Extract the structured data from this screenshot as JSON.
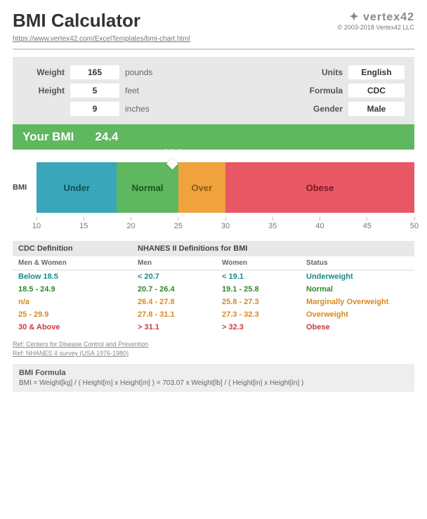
{
  "header": {
    "title": "BMI Calculator",
    "url": "https://www.vertex42.com/ExcelTemplates/bmi-chart.html",
    "logo": "✦ vertex42",
    "copyright": "© 2003-2018 Vertex42 LLC"
  },
  "params": {
    "weight_label": "Weight",
    "weight_value": "165",
    "weight_units": "pounds",
    "height_label": "Height",
    "height_ft": "5",
    "height_ft_units": "feet",
    "height_in": "9",
    "height_in_units": "inches",
    "units_label": "Units",
    "units_value": "English",
    "formula_label": "Formula",
    "formula_value": "CDC",
    "gender_label": "Gender",
    "gender_value": "Male"
  },
  "banner": {
    "label": "Your BMI",
    "value": "24.4"
  },
  "chart": {
    "axis_label": "BMI",
    "min": 10,
    "max": 50,
    "marker": 24.4,
    "marker_label": "24.4",
    "segments": [
      {
        "label": "Under",
        "from": 10,
        "to": 18.5,
        "bg": "#3aa6b9",
        "fg": "#0f505a"
      },
      {
        "label": "Normal",
        "from": 18.5,
        "to": 25,
        "bg": "#5fb75f",
        "fg": "#18571a"
      },
      {
        "label": "Over",
        "from": 25,
        "to": 30,
        "bg": "#f0a33c",
        "fg": "#8a5a12"
      },
      {
        "label": "Obese",
        "from": 30,
        "to": 50,
        "bg": "#e85764",
        "fg": "#7c1822"
      }
    ],
    "ticks": [
      10,
      15,
      20,
      25,
      30,
      35,
      40,
      45,
      50
    ]
  },
  "defs": {
    "head_left": "CDC Definition",
    "head_right": "NHANES II Definitions for BMI",
    "sub": [
      "Men & Women",
      "Men",
      "Women",
      "Status"
    ],
    "rows": [
      {
        "c": [
          "Below 18.5",
          "< 20.7",
          "< 19.1",
          "Underweight"
        ],
        "color": "#1a8a8a"
      },
      {
        "c": [
          "18.5 - 24.9",
          "20.7 - 26.4",
          "19.1 - 25.8",
          "Normal"
        ],
        "color": "#2c8a2c"
      },
      {
        "c": [
          "n/a",
          "26.4 - 27.8",
          "25.8 - 27.3",
          "Marginally Overweight"
        ],
        "color": "#d68a1f"
      },
      {
        "c": [
          "25 - 29.9",
          "27.8 - 31.1",
          "27.3 - 32.3",
          "Overweight"
        ],
        "color": "#d68a1f"
      },
      {
        "c": [
          "30 & Above",
          "> 31.1",
          "> 32.3",
          "Obese"
        ],
        "color": "#cc3a3a"
      }
    ],
    "refs": [
      "Ref: Centers for Disease Control and Prevention",
      "Ref: NHANES II survey (USA 1976-1980)"
    ]
  },
  "formula": {
    "title": "BMI Formula",
    "text": "BMI = Weight[kg] / ( Height[m] x Height[m] ) = 703.07 x Weight[lb] / ( Height[in] x Height[in] )"
  }
}
